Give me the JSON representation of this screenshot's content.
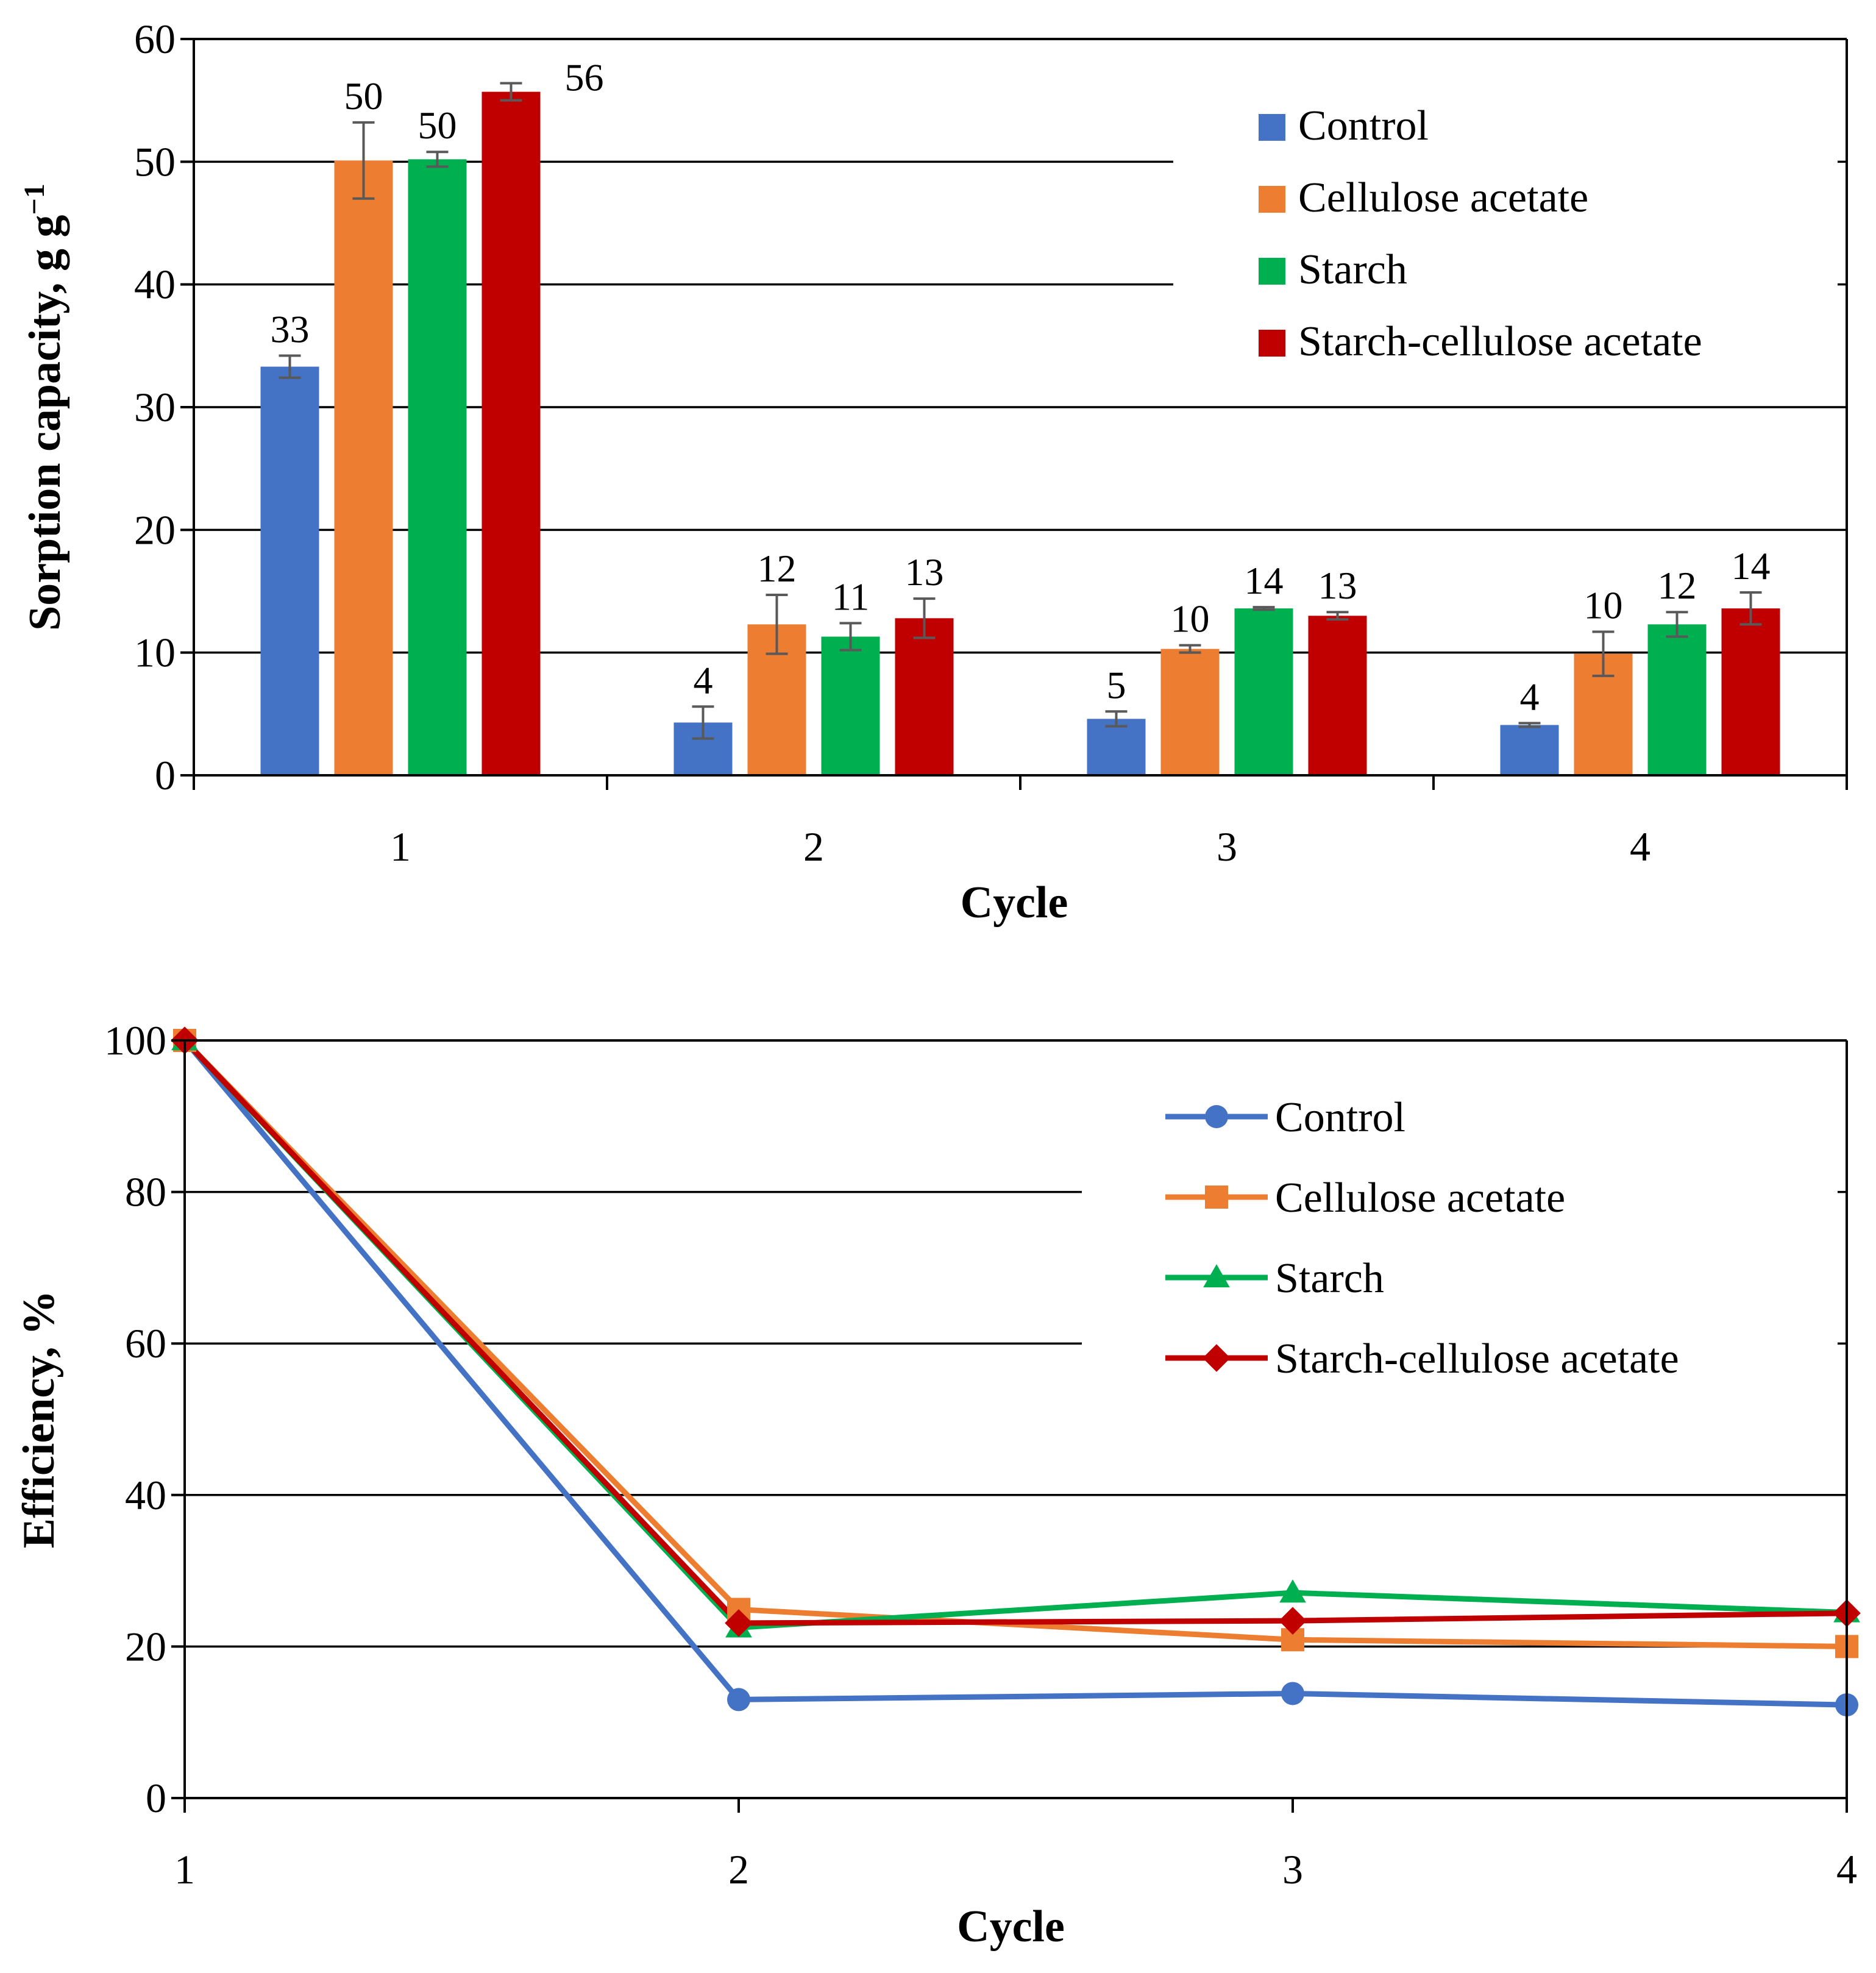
{
  "chart_data": [
    {
      "type": "bar",
      "title": "",
      "xlabel": "Cycle",
      "ylabel": "Sorption capacity, g g",
      "ylabel_sup": "−1",
      "ylim": [
        0,
        60
      ],
      "yticks": [
        "0",
        "10",
        "20",
        "30",
        "40",
        "50",
        "60"
      ],
      "categories": [
        "1",
        "2",
        "3",
        "4"
      ],
      "legend_position": "top-right",
      "series": [
        {
          "name": "Control",
          "color": "#4472C4",
          "values": [
            33.3,
            4.3,
            4.6,
            4.1
          ],
          "errors": [
            0.9,
            1.3,
            0.6,
            0.15
          ],
          "labels": [
            "33",
            "4",
            "5",
            "4"
          ]
        },
        {
          "name": "Cellulose acetate",
          "color": "#ED7D31",
          "values": [
            50.1,
            12.3,
            10.3,
            9.9
          ],
          "errors": [
            3.1,
            2.4,
            0.3,
            1.8
          ],
          "labels": [
            "50",
            "12",
            "10",
            "10"
          ]
        },
        {
          "name": "Starch",
          "color": "#00B050",
          "values": [
            50.2,
            11.3,
            13.6,
            12.3
          ],
          "errors": [
            0.6,
            1.1,
            0.1,
            1.0
          ],
          "labels": [
            "50",
            "11",
            "14",
            "12"
          ]
        },
        {
          "name": "Starch-cellulose acetate",
          "color": "#C00000",
          "values": [
            55.7,
            12.8,
            13.0,
            13.6
          ],
          "errors": [
            0.7,
            1.6,
            0.3,
            1.3
          ],
          "labels": [
            "56",
            "13",
            "13",
            "14"
          ]
        }
      ]
    },
    {
      "type": "line",
      "title": "",
      "xlabel": "Cycle",
      "ylabel": "Efficiency, %",
      "ylim": [
        0,
        100
      ],
      "yticks": [
        "0",
        "20",
        "40",
        "60",
        "80",
        "100"
      ],
      "categories": [
        "1",
        "2",
        "3",
        "4"
      ],
      "legend_position": "top-right",
      "series": [
        {
          "name": "Control",
          "color": "#4472C4",
          "marker": "circle",
          "values": [
            100,
            13,
            13.8,
            12.3
          ]
        },
        {
          "name": "Cellulose acetate",
          "color": "#ED7D31",
          "marker": "square",
          "values": [
            100,
            24.9,
            20.9,
            20
          ]
        },
        {
          "name": "Starch",
          "color": "#00B050",
          "marker": "triangle",
          "values": [
            100,
            22.5,
            27.1,
            24.5
          ]
        },
        {
          "name": "Starch-cellulose acetate",
          "color": "#C00000",
          "marker": "diamond",
          "values": [
            100,
            23.1,
            23.4,
            24.4
          ]
        }
      ]
    }
  ]
}
